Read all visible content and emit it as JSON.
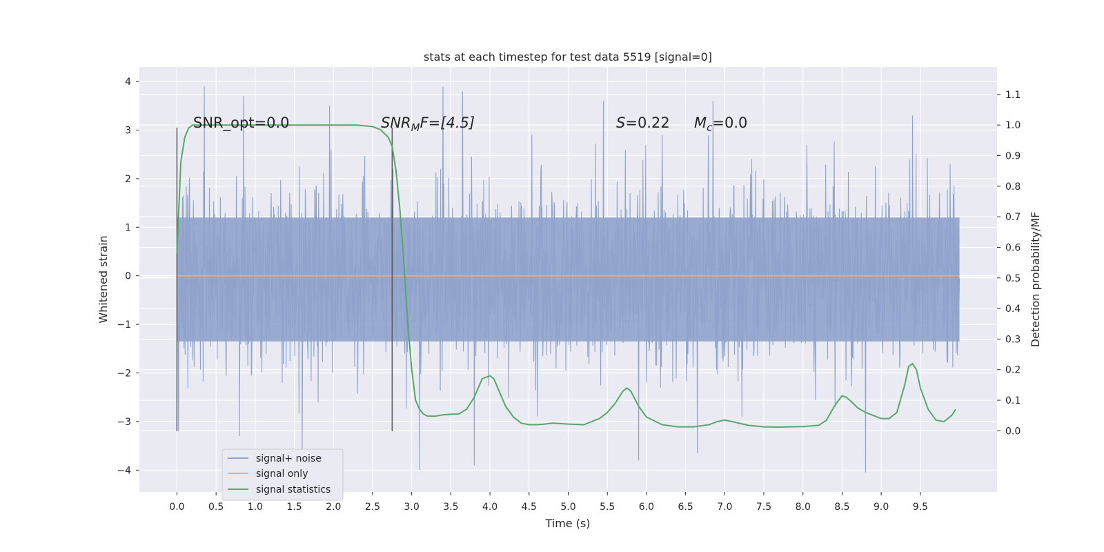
{
  "chart_data": {
    "type": "line",
    "title": "stats at each timestep for test data 5519 [signal=0]",
    "xlabel": "Time (s)",
    "ylabel_left": "Whitened strain",
    "ylabel_right": "Detection probability/MF",
    "xlim": [
      -0.48,
      10.48
    ],
    "ylim_left": [
      -4.45,
      4.3
    ],
    "ylim_right": [
      -0.2,
      1.19
    ],
    "x_ticks": [
      "0.0",
      "0.5",
      "1.0",
      "1.5",
      "2.0",
      "2.5",
      "3.0",
      "3.5",
      "4.0",
      "4.5",
      "5.0",
      "5.5",
      "6.0",
      "6.5",
      "7.0",
      "7.5",
      "8.0",
      "8.5",
      "9.0",
      "9.5"
    ],
    "y_left_ticks": [
      "4",
      "3",
      "2",
      "1",
      "0",
      "−1",
      "−2",
      "−3",
      "−4"
    ],
    "y_right_ticks": [
      "1.1",
      "1.0",
      "0.9",
      "0.8",
      "0.7",
      "0.6",
      "0.5",
      "0.4",
      "0.3",
      "0.2",
      "0.1",
      "0.0"
    ],
    "grid": true,
    "legend_placement": "lower-left",
    "annotations": {
      "snr_opt": "SNR_opt=0.0",
      "snr_mf_main": "SNR",
      "snr_mf_sub": "M",
      "snr_mf_rest": "F=[4.5]",
      "s_main": "S",
      "s_rest": "=0.22",
      "mc_main": "M",
      "mc_sub": "c",
      "mc_rest": "=0.0"
    },
    "vertical_lines": [
      {
        "x": 0.0,
        "ymin": -3.2,
        "ymax": 3.05
      },
      {
        "x": 2.75,
        "ymin": -3.2,
        "ymax": 3.05
      }
    ],
    "series": [
      {
        "name": "signal+ noise",
        "color": "#8fa3cc",
        "axis": "left",
        "description_range": [
          0.0,
          10.0
        ],
        "envelope_core": [
          -1.35,
          1.2
        ],
        "peaks_upper": [
          [
            0.35,
            3.9
          ],
          [
            0.85,
            3.7
          ],
          [
            1.95,
            3.5
          ],
          [
            3.4,
            3.9
          ],
          [
            3.65,
            3.8
          ],
          [
            5.45,
            3.6
          ],
          [
            6.85,
            3.6
          ],
          [
            9.4,
            3.3
          ]
        ],
        "peaks_lower": [
          [
            0.02,
            -3.2
          ],
          [
            0.8,
            -3.3
          ],
          [
            1.6,
            -3.8
          ],
          [
            3.1,
            -4.0
          ],
          [
            3.8,
            -3.9
          ],
          [
            5.9,
            -3.8
          ],
          [
            6.65,
            -3.65
          ],
          [
            8.8,
            -4.05
          ]
        ]
      },
      {
        "name": "signal only",
        "color": "#e5a98a",
        "axis": "left",
        "x": [
          0.0,
          10.0
        ],
        "y": [
          0.0,
          0.0
        ]
      },
      {
        "name": "signal statistics",
        "color": "#55a868",
        "axis": "right",
        "x": [
          0.0,
          0.05,
          0.1,
          0.15,
          0.2,
          0.3,
          0.5,
          1.0,
          1.5,
          2.0,
          2.3,
          2.5,
          2.6,
          2.7,
          2.75,
          2.8,
          2.85,
          2.9,
          2.95,
          3.0,
          3.05,
          3.1,
          3.15,
          3.2,
          3.3,
          3.4,
          3.5,
          3.6,
          3.7,
          3.8,
          3.9,
          4.0,
          4.05,
          4.1,
          4.2,
          4.3,
          4.4,
          4.5,
          4.6,
          4.7,
          4.8,
          5.0,
          5.2,
          5.4,
          5.5,
          5.6,
          5.7,
          5.75,
          5.8,
          5.9,
          6.0,
          6.2,
          6.4,
          6.6,
          6.8,
          6.9,
          7.0,
          7.1,
          7.3,
          7.5,
          7.7,
          8.0,
          8.2,
          8.3,
          8.4,
          8.5,
          8.55,
          8.6,
          8.7,
          8.8,
          9.0,
          9.1,
          9.2,
          9.3,
          9.35,
          9.4,
          9.45,
          9.5,
          9.6,
          9.7,
          9.8,
          9.9,
          9.95
        ],
        "y": [
          0.58,
          0.88,
          0.96,
          0.99,
          1.0,
          1.0,
          1.0,
          1.0,
          1.0,
          1.0,
          1.0,
          0.995,
          0.985,
          0.96,
          0.93,
          0.85,
          0.72,
          0.55,
          0.35,
          0.2,
          0.1,
          0.07,
          0.055,
          0.048,
          0.048,
          0.052,
          0.054,
          0.055,
          0.07,
          0.11,
          0.17,
          0.18,
          0.17,
          0.14,
          0.08,
          0.045,
          0.025,
          0.02,
          0.02,
          0.022,
          0.025,
          0.022,
          0.02,
          0.04,
          0.06,
          0.09,
          0.13,
          0.14,
          0.13,
          0.08,
          0.045,
          0.02,
          0.013,
          0.013,
          0.02,
          0.03,
          0.035,
          0.03,
          0.018,
          0.013,
          0.012,
          0.014,
          0.018,
          0.035,
          0.08,
          0.115,
          0.11,
          0.1,
          0.075,
          0.06,
          0.04,
          0.04,
          0.06,
          0.15,
          0.21,
          0.22,
          0.2,
          0.14,
          0.07,
          0.035,
          0.03,
          0.05,
          0.07
        ]
      }
    ]
  }
}
